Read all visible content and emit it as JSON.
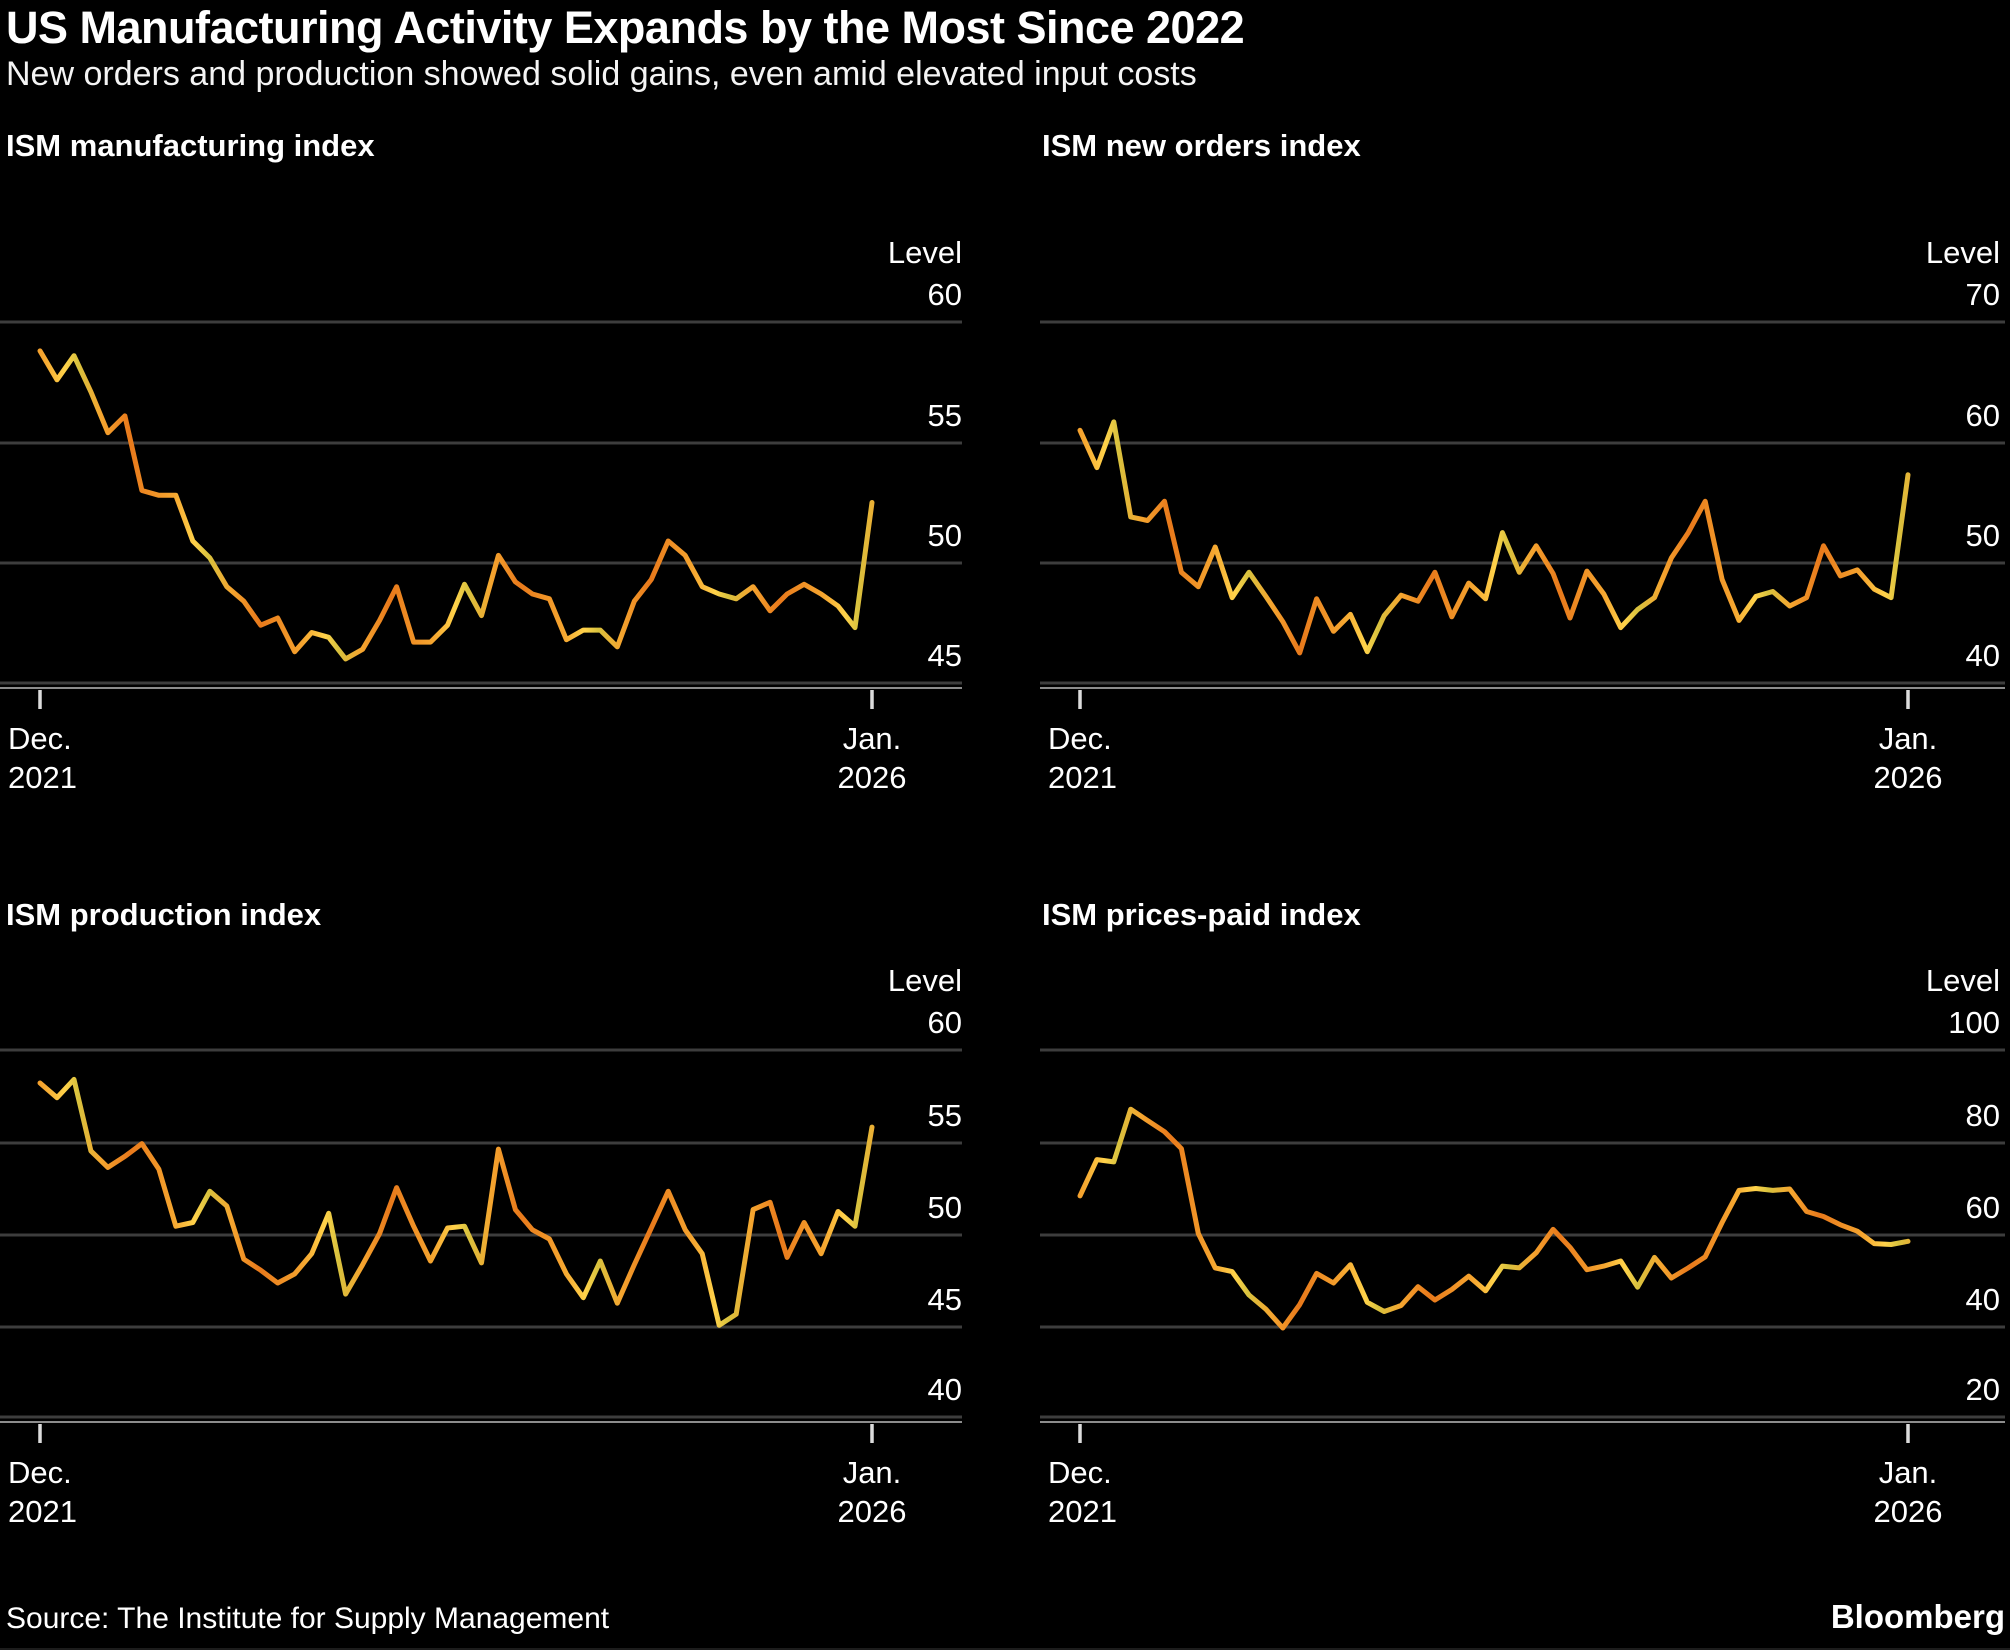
{
  "header": {
    "title": "US Manufacturing Activity Expands by the Most Since 2022",
    "subtitle": "New orders and production showed solid gains, even amid elevated input costs"
  },
  "footer": {
    "source": "Source: The Institute for Supply Management",
    "brand": "Bloomberg"
  },
  "colors": {
    "background": "#000000",
    "text": "#ffffff",
    "gridline": "#3d3d3d",
    "axis_line": "#8c8c8c",
    "tick_mark": "#dcdcdc",
    "line_gradient": [
      "#e8791b",
      "#f5a52f",
      "#ffd24a",
      "#d8c23e"
    ]
  },
  "chart_data": [
    {
      "id": "manufacturing-index",
      "type": "line",
      "title": "ISM manufacturing index",
      "ylabel": "Level",
      "yticks": [
        60,
        55,
        50,
        45
      ],
      "ylim": [
        44,
        63
      ],
      "grid": true,
      "x_frequency": "monthly",
      "x_start": {
        "line1": "Dec.",
        "line2": "2021"
      },
      "x_end": {
        "line1": "Jan.",
        "line2": "2026"
      },
      "values": [
        58.8,
        57.6,
        58.6,
        57.1,
        55.4,
        56.1,
        53.0,
        52.8,
        52.8,
        50.9,
        50.2,
        49.0,
        48.4,
        47.4,
        47.7,
        46.3,
        47.1,
        46.9,
        46.0,
        46.4,
        47.6,
        49.0,
        46.7,
        46.7,
        47.4,
        49.1,
        47.8,
        50.3,
        49.2,
        48.7,
        48.5,
        46.8,
        47.2,
        47.2,
        46.5,
        48.4,
        49.3,
        50.9,
        50.3,
        49.0,
        48.7,
        48.5,
        49.0,
        48.0,
        48.7,
        49.1,
        48.7,
        48.2,
        47.3,
        52.5
      ]
    },
    {
      "id": "new-orders-index",
      "type": "line",
      "title": "ISM new orders index",
      "ylabel": "Level",
      "yticks": [
        70,
        60,
        50,
        40
      ],
      "ylim": [
        38,
        66
      ],
      "grid": true,
      "x_frequency": "monthly",
      "x_start": {
        "line1": "Dec.",
        "line2": "2021"
      },
      "x_end": {
        "line1": "Jan.",
        "line2": "2026"
      },
      "values": [
        61.0,
        57.9,
        61.7,
        53.8,
        53.5,
        55.1,
        49.2,
        48.0,
        51.3,
        47.1,
        49.2,
        47.2,
        45.1,
        42.5,
        47.0,
        44.3,
        45.7,
        42.6,
        45.6,
        47.3,
        46.8,
        49.2,
        45.5,
        48.3,
        47.0,
        52.5,
        49.2,
        51.4,
        49.1,
        45.4,
        49.3,
        47.4,
        44.6,
        46.1,
        47.1,
        50.4,
        52.5,
        55.1,
        48.6,
        45.2,
        47.2,
        47.6,
        46.4,
        47.1,
        51.4,
        48.9,
        49.4,
        47.8,
        47.1,
        57.3
      ]
    },
    {
      "id": "production-index",
      "type": "line",
      "title": "ISM production index",
      "ylabel": "Level",
      "yticks": [
        60,
        55,
        50,
        45,
        40
      ],
      "ylim": [
        39,
        64
      ],
      "grid": true,
      "x_frequency": "monthly",
      "x_start": {
        "line1": "Dec.",
        "line2": "2021"
      },
      "x_end": {
        "line1": "Jan.",
        "line2": "2026"
      },
      "values": [
        58.2,
        57.4,
        58.4,
        54.5,
        53.6,
        54.2,
        54.9,
        53.5,
        50.4,
        50.6,
        52.3,
        51.5,
        48.6,
        48.0,
        47.3,
        47.8,
        48.9,
        51.1,
        46.7,
        48.3,
        50.0,
        52.5,
        50.4,
        48.5,
        50.3,
        50.4,
        48.4,
        54.6,
        51.3,
        50.2,
        49.7,
        47.8,
        46.5,
        48.5,
        46.2,
        48.3,
        50.3,
        52.3,
        50.2,
        48.9,
        45.0,
        45.6,
        51.3,
        51.7,
        48.7,
        50.6,
        48.9,
        51.2,
        50.4,
        55.8
      ]
    },
    {
      "id": "prices-paid-index",
      "type": "line",
      "title": "ISM prices-paid index",
      "ylabel": "Level",
      "yticks": [
        100,
        80,
        60,
        40,
        20
      ],
      "ylim": [
        15,
        116
      ],
      "grid": true,
      "x_frequency": "monthly",
      "x_start": {
        "line1": "Dec.",
        "line2": "2021"
      },
      "x_end": {
        "line1": "Jan.",
        "line2": "2026"
      },
      "values": [
        68.2,
        76.1,
        75.6,
        87.1,
        84.6,
        82.2,
        78.5,
        60.0,
        52.5,
        51.7,
        46.6,
        43.5,
        39.4,
        44.5,
        51.3,
        49.2,
        53.2,
        45.0,
        43.0,
        44.3,
        48.4,
        45.5,
        47.8,
        50.7,
        47.5,
        52.9,
        52.5,
        55.8,
        60.9,
        57.0,
        52.1,
        52.9,
        54.0,
        48.3,
        54.8,
        50.3,
        52.5,
        54.9,
        62.4,
        69.4,
        69.8,
        69.4,
        69.7,
        64.8,
        63.7,
        61.9,
        60.5,
        57.8,
        57.6,
        58.3
      ]
    }
  ]
}
